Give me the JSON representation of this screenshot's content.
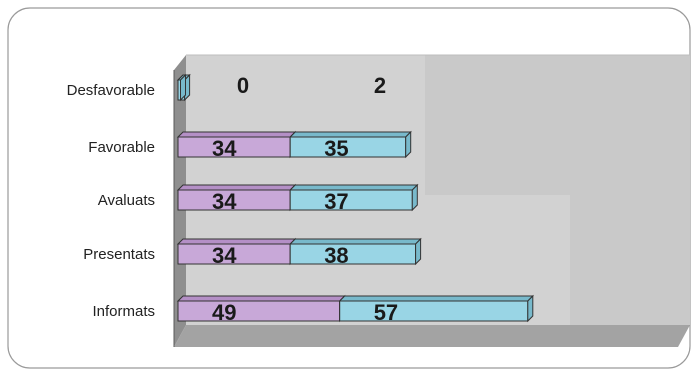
{
  "chart_data": {
    "type": "bar",
    "orientation": "horizontal",
    "stacked": true,
    "three_d": true,
    "categories": [
      "Desfavorable",
      "Favorable",
      "Avaluats",
      "Presentats",
      "Informats"
    ],
    "series": [
      {
        "values": [
          0,
          34,
          34,
          34,
          49
        ],
        "color": "#c8a8d8"
      },
      {
        "values": [
          2,
          35,
          37,
          38,
          57
        ],
        "color": "#99d5e5"
      }
    ],
    "data_labels": [
      [
        "0",
        "34",
        "34",
        "34",
        "49"
      ],
      [
        "2",
        "35",
        "37",
        "38",
        "57"
      ]
    ],
    "xlim": [
      0,
      160
    ],
    "legend": "none",
    "gridlines": true,
    "plot_background": "#c8c8c8",
    "frame_color": "#808080"
  }
}
